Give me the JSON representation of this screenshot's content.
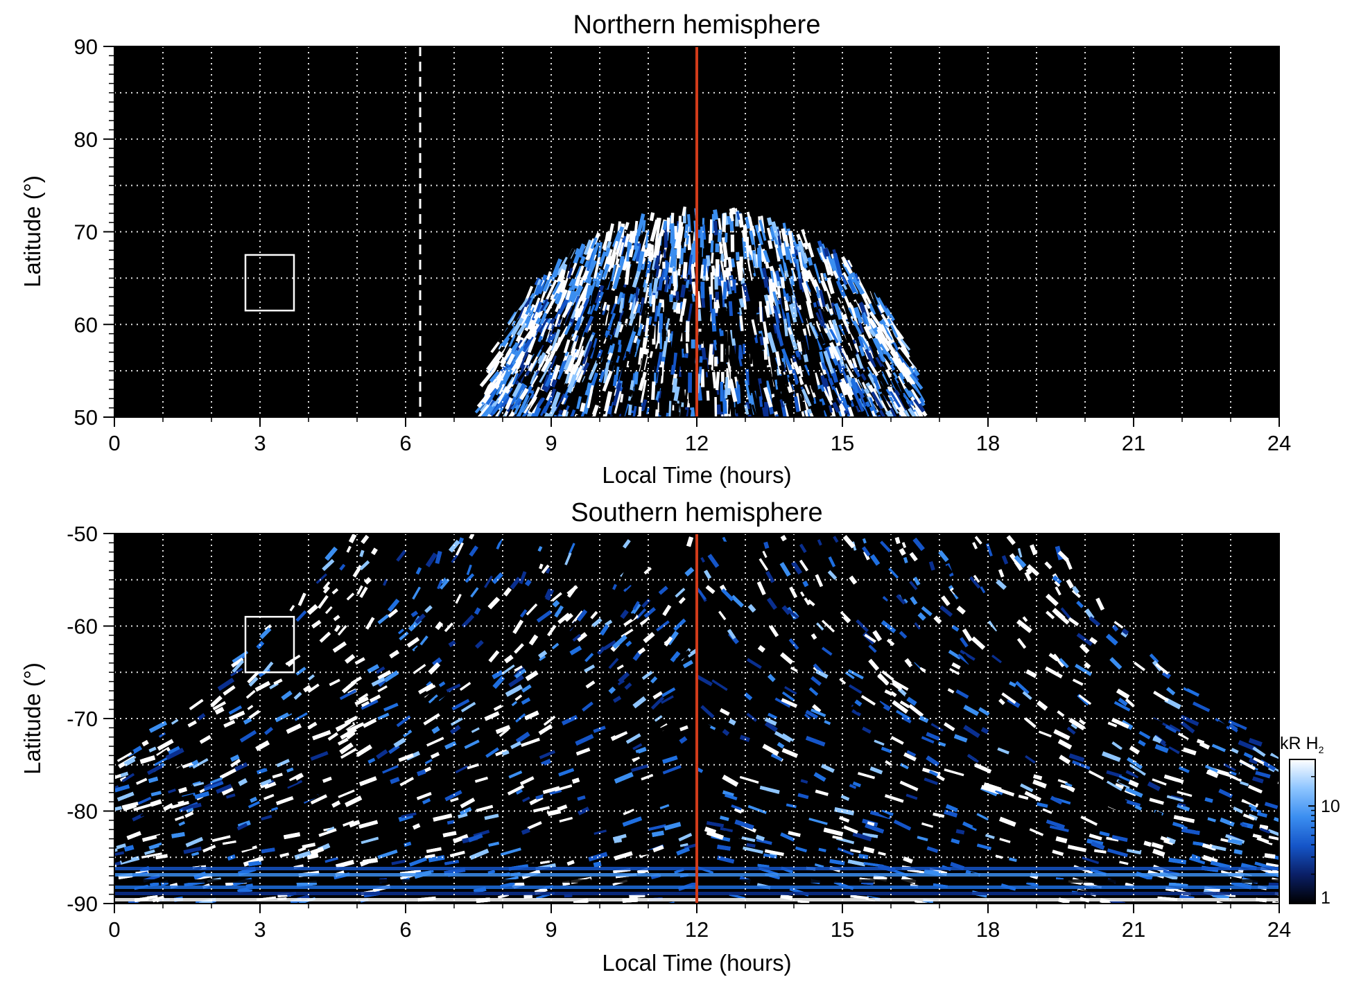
{
  "chart_data": [
    {
      "type": "heatmap",
      "title": "Northern hemisphere",
      "xlabel": "Local Time (hours)",
      "ylabel": "Latitude (°)",
      "xlim": [
        0,
        24
      ],
      "ylim": [
        50,
        90
      ],
      "x_ticks": [
        "0",
        "3",
        "6",
        "9",
        "12",
        "15",
        "18",
        "21",
        "24"
      ],
      "y_ticks": [
        "50",
        "60",
        "70",
        "80",
        "90"
      ],
      "grid": true,
      "reference_line": {
        "x": 12,
        "color": "#d13b1a"
      },
      "dashed_line": {
        "x": 6.3,
        "color": "#ffffff"
      },
      "box": {
        "x": [
          2.7,
          3.7
        ],
        "y": [
          61.5,
          67.5
        ]
      },
      "emission_region": {
        "x_start": 7.6,
        "x_end": 16.6,
        "apex_x": 12.1,
        "edge_latitude": 50,
        "apex_latitude": 73,
        "inner_apex_latitude": 62
      }
    },
    {
      "type": "heatmap",
      "title": "Southern hemisphere",
      "xlabel": "Local Time (hours)",
      "ylabel": "Latitude (°)",
      "xlim": [
        0,
        24
      ],
      "ylim": [
        -90,
        -50
      ],
      "x_ticks": [
        "0",
        "3",
        "6",
        "9",
        "12",
        "15",
        "18",
        "21",
        "24"
      ],
      "y_ticks": [
        "-90",
        "-80",
        "-70",
        "-60",
        "-50"
      ],
      "grid": true,
      "reference_line": {
        "x": 12,
        "color": "#d13b1a"
      },
      "box": {
        "x": [
          2.7,
          3.7
        ],
        "y": [
          -65,
          -59
        ]
      },
      "emission_region": {
        "x_start": 4.6,
        "x_end": 19.4,
        "corner_latitude": -74.5,
        "top_latitude": -50,
        "bright_band_x": [
          4.8,
          19.1
        ]
      },
      "colorbar": {
        "label_main": "kR H",
        "label_sub": "2",
        "scale": "log",
        "ticks": [
          "1",
          "10"
        ],
        "range": [
          1,
          30
        ],
        "colors": [
          "#000000",
          "#0a1f66",
          "#1555c8",
          "#3b8ef0",
          "#8ec5ff",
          "#ffffff"
        ]
      }
    }
  ]
}
